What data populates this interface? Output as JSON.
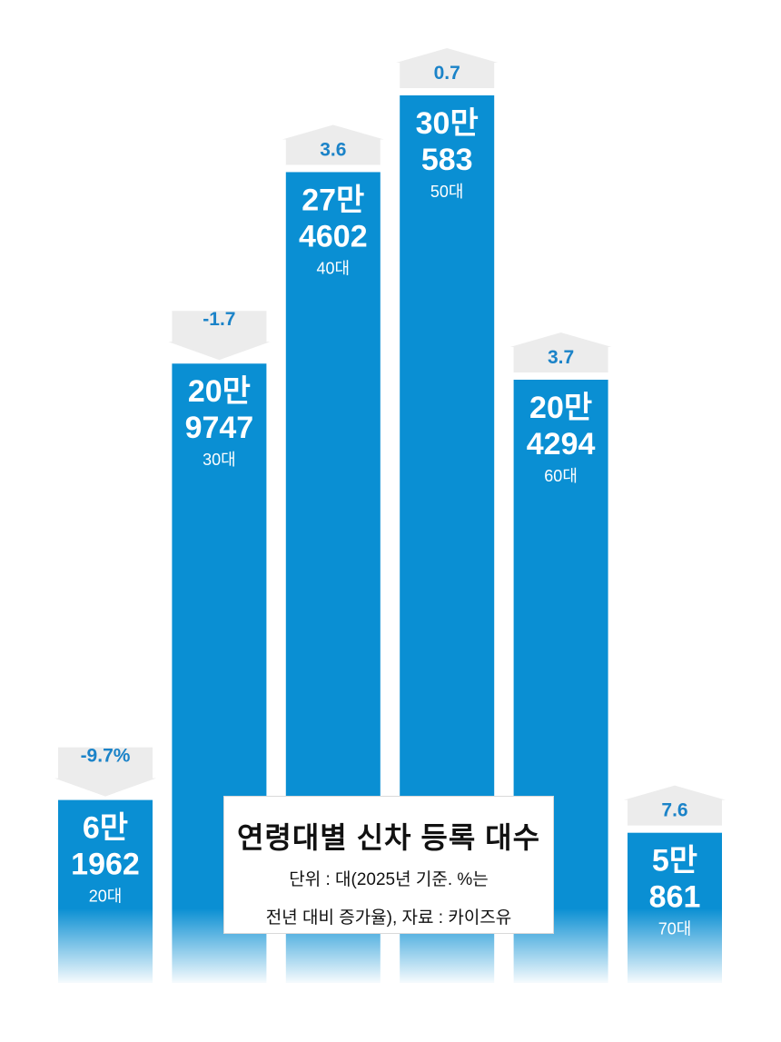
{
  "chart_data": {
    "type": "bar",
    "title": "연령대별 신차 등록 대수",
    "note_lines": [
      "단위 : 대(2025년 기준. %는",
      "전년 대비 증가율), 자료 : 카이즈유"
    ],
    "categories": [
      "20대",
      "30대",
      "40대",
      "50대",
      "60대",
      "70대"
    ],
    "values": [
      61962,
      209747,
      274602,
      300583,
      204294,
      50861
    ],
    "value_labels": [
      [
        "6만",
        "1962"
      ],
      [
        "20만",
        "9747"
      ],
      [
        "27만",
        "4602"
      ],
      [
        "30만",
        "583"
      ],
      [
        "20만",
        "4294"
      ],
      [
        "5만",
        "861"
      ]
    ],
    "changes": [
      -9.7,
      -1.7,
      3.6,
      0.7,
      3.7,
      7.6
    ],
    "change_labels": [
      "-9.7%",
      "-1.7",
      "3.6",
      "0.7",
      "3.7",
      "7.6"
    ],
    "colors": {
      "bar": "#0a8fd3",
      "arrow": "#ececec",
      "change_text": "#1b83c8"
    }
  }
}
